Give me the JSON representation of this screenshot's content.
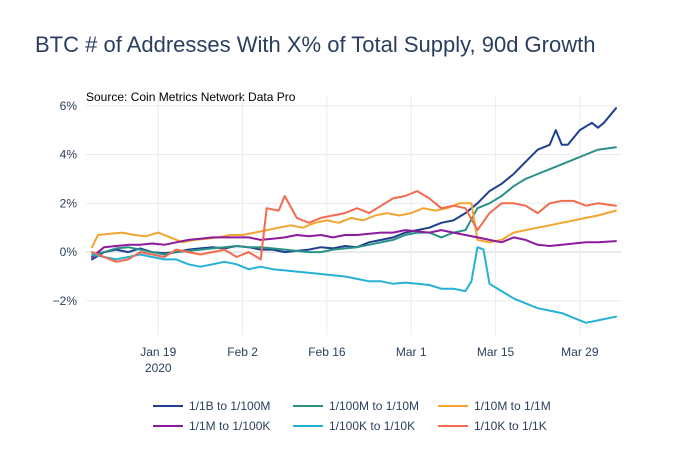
{
  "chart_data": {
    "type": "line",
    "title": "BTC # of Addresses With X% of Total Supply, 90d Growth",
    "subtitle": "Source: Coin Metrics Network Data Pro",
    "xlabel": "",
    "ylabel": "",
    "x_range": [
      "2020-01-07",
      "2020-04-05"
    ],
    "ylim": [
      -3.4,
      6.4
    ],
    "y_ticks": [
      -2,
      0,
      2,
      4,
      6
    ],
    "y_tick_labels": [
      "−2%",
      "0%",
      "2%",
      "4%",
      "6%"
    ],
    "x_ticks": [
      "2020-01-19",
      "2020-02-02",
      "2020-02-16",
      "2020-03-01",
      "2020-03-15",
      "2020-03-29"
    ],
    "x_tick_labels": [
      [
        "Jan 19",
        "2020"
      ],
      [
        "Feb 2",
        ""
      ],
      [
        "Feb 16",
        ""
      ],
      [
        "Mar 1",
        ""
      ],
      [
        "Mar 15",
        ""
      ],
      [
        "Mar 29",
        ""
      ]
    ],
    "grid": true,
    "legend_position": "bottom",
    "series": [
      {
        "name": "1/1B to 1/100M",
        "color": "#1f3f8f",
        "points": [
          [
            "2020-01-08",
            -0.3
          ],
          [
            "2020-01-10",
            0.0
          ],
          [
            "2020-01-12",
            0.1
          ],
          [
            "2020-01-14",
            0.0
          ],
          [
            "2020-01-16",
            0.15
          ],
          [
            "2020-01-18",
            0.0
          ],
          [
            "2020-01-20",
            -0.05
          ],
          [
            "2020-01-22",
            0.0
          ],
          [
            "2020-01-24",
            0.1
          ],
          [
            "2020-01-26",
            0.15
          ],
          [
            "2020-01-28",
            0.2
          ],
          [
            "2020-01-30",
            0.15
          ],
          [
            "2020-02-01",
            0.25
          ],
          [
            "2020-02-03",
            0.2
          ],
          [
            "2020-02-05",
            0.1
          ],
          [
            "2020-02-07",
            0.1
          ],
          [
            "2020-02-09",
            0.0
          ],
          [
            "2020-02-11",
            0.05
          ],
          [
            "2020-02-13",
            0.1
          ],
          [
            "2020-02-15",
            0.2
          ],
          [
            "2020-02-17",
            0.15
          ],
          [
            "2020-02-19",
            0.25
          ],
          [
            "2020-02-21",
            0.2
          ],
          [
            "2020-02-23",
            0.4
          ],
          [
            "2020-02-25",
            0.5
          ],
          [
            "2020-02-27",
            0.6
          ],
          [
            "2020-02-29",
            0.8
          ],
          [
            "2020-03-02",
            0.9
          ],
          [
            "2020-03-04",
            1.0
          ],
          [
            "2020-03-06",
            1.2
          ],
          [
            "2020-03-08",
            1.3
          ],
          [
            "2020-03-10",
            1.6
          ],
          [
            "2020-03-12",
            2.0
          ],
          [
            "2020-03-14",
            2.5
          ],
          [
            "2020-03-16",
            2.8
          ],
          [
            "2020-03-18",
            3.2
          ],
          [
            "2020-03-20",
            3.7
          ],
          [
            "2020-03-22",
            4.2
          ],
          [
            "2020-03-24",
            4.4
          ],
          [
            "2020-03-25",
            5.0
          ],
          [
            "2020-03-26",
            4.4
          ],
          [
            "2020-03-27",
            4.4
          ],
          [
            "2020-03-29",
            5.0
          ],
          [
            "2020-03-31",
            5.3
          ],
          [
            "2020-04-01",
            5.1
          ],
          [
            "2020-04-02",
            5.3
          ],
          [
            "2020-04-04",
            5.9
          ]
        ]
      },
      {
        "name": "1/100M to 1/10M",
        "color": "#2a9187",
        "points": [
          [
            "2020-01-08",
            -0.1
          ],
          [
            "2020-01-10",
            0.0
          ],
          [
            "2020-01-12",
            0.15
          ],
          [
            "2020-01-14",
            0.2
          ],
          [
            "2020-01-16",
            0.1
          ],
          [
            "2020-01-18",
            0.0
          ],
          [
            "2020-01-20",
            -0.1
          ],
          [
            "2020-01-22",
            0.0
          ],
          [
            "2020-01-24",
            0.05
          ],
          [
            "2020-01-26",
            0.1
          ],
          [
            "2020-01-28",
            0.15
          ],
          [
            "2020-01-30",
            0.2
          ],
          [
            "2020-02-01",
            0.25
          ],
          [
            "2020-02-03",
            0.2
          ],
          [
            "2020-02-05",
            0.2
          ],
          [
            "2020-02-07",
            0.15
          ],
          [
            "2020-02-09",
            0.1
          ],
          [
            "2020-02-11",
            0.05
          ],
          [
            "2020-02-13",
            0.0
          ],
          [
            "2020-02-15",
            0.0
          ],
          [
            "2020-02-17",
            0.1
          ],
          [
            "2020-02-19",
            0.15
          ],
          [
            "2020-02-21",
            0.2
          ],
          [
            "2020-02-23",
            0.3
          ],
          [
            "2020-02-25",
            0.4
          ],
          [
            "2020-02-27",
            0.5
          ],
          [
            "2020-02-29",
            0.7
          ],
          [
            "2020-03-02",
            0.8
          ],
          [
            "2020-03-04",
            0.8
          ],
          [
            "2020-03-06",
            0.6
          ],
          [
            "2020-03-08",
            0.8
          ],
          [
            "2020-03-10",
            0.9
          ],
          [
            "2020-03-12",
            1.8
          ],
          [
            "2020-03-14",
            2.0
          ],
          [
            "2020-03-16",
            2.3
          ],
          [
            "2020-03-18",
            2.7
          ],
          [
            "2020-03-20",
            3.0
          ],
          [
            "2020-03-22",
            3.2
          ],
          [
            "2020-03-24",
            3.4
          ],
          [
            "2020-03-26",
            3.6
          ],
          [
            "2020-03-28",
            3.8
          ],
          [
            "2020-03-30",
            4.0
          ],
          [
            "2020-04-01",
            4.2
          ],
          [
            "2020-04-04",
            4.3
          ]
        ]
      },
      {
        "name": "1/10M to 1/1M",
        "color": "#f2a531",
        "points": [
          [
            "2020-01-08",
            0.2
          ],
          [
            "2020-01-09",
            0.7
          ],
          [
            "2020-01-11",
            0.75
          ],
          [
            "2020-01-13",
            0.8
          ],
          [
            "2020-01-15",
            0.7
          ],
          [
            "2020-01-17",
            0.65
          ],
          [
            "2020-01-19",
            0.8
          ],
          [
            "2020-01-21",
            0.6
          ],
          [
            "2020-01-23",
            0.4
          ],
          [
            "2020-01-25",
            0.5
          ],
          [
            "2020-01-27",
            0.55
          ],
          [
            "2020-01-29",
            0.6
          ],
          [
            "2020-01-31",
            0.7
          ],
          [
            "2020-02-02",
            0.7
          ],
          [
            "2020-02-04",
            0.8
          ],
          [
            "2020-02-06",
            0.9
          ],
          [
            "2020-02-08",
            1.0
          ],
          [
            "2020-02-10",
            1.1
          ],
          [
            "2020-02-12",
            1.0
          ],
          [
            "2020-02-14",
            1.2
          ],
          [
            "2020-02-16",
            1.3
          ],
          [
            "2020-02-18",
            1.2
          ],
          [
            "2020-02-20",
            1.4
          ],
          [
            "2020-02-22",
            1.3
          ],
          [
            "2020-02-24",
            1.5
          ],
          [
            "2020-02-26",
            1.6
          ],
          [
            "2020-02-28",
            1.5
          ],
          [
            "2020-03-01",
            1.6
          ],
          [
            "2020-03-03",
            1.8
          ],
          [
            "2020-03-05",
            1.7
          ],
          [
            "2020-03-07",
            1.8
          ],
          [
            "2020-03-09",
            2.0
          ],
          [
            "2020-03-11",
            2.0
          ],
          [
            "2020-03-12",
            0.5
          ],
          [
            "2020-03-14",
            0.4
          ],
          [
            "2020-03-16",
            0.5
          ],
          [
            "2020-03-18",
            0.8
          ],
          [
            "2020-03-20",
            0.9
          ],
          [
            "2020-03-22",
            1.0
          ],
          [
            "2020-03-24",
            1.1
          ],
          [
            "2020-03-26",
            1.2
          ],
          [
            "2020-03-28",
            1.3
          ],
          [
            "2020-03-30",
            1.4
          ],
          [
            "2020-04-01",
            1.5
          ],
          [
            "2020-04-04",
            1.7
          ]
        ]
      },
      {
        "name": "1/1M to 1/100K",
        "color": "#8e1a9e",
        "points": [
          [
            "2020-01-08",
            -0.2
          ],
          [
            "2020-01-10",
            0.2
          ],
          [
            "2020-01-12",
            0.25
          ],
          [
            "2020-01-14",
            0.3
          ],
          [
            "2020-01-16",
            0.3
          ],
          [
            "2020-01-18",
            0.35
          ],
          [
            "2020-01-20",
            0.3
          ],
          [
            "2020-01-22",
            0.4
          ],
          [
            "2020-01-24",
            0.5
          ],
          [
            "2020-01-26",
            0.55
          ],
          [
            "2020-01-28",
            0.6
          ],
          [
            "2020-01-30",
            0.6
          ],
          [
            "2020-02-01",
            0.6
          ],
          [
            "2020-02-03",
            0.6
          ],
          [
            "2020-02-05",
            0.5
          ],
          [
            "2020-02-07",
            0.55
          ],
          [
            "2020-02-09",
            0.6
          ],
          [
            "2020-02-11",
            0.7
          ],
          [
            "2020-02-13",
            0.65
          ],
          [
            "2020-02-15",
            0.7
          ],
          [
            "2020-02-17",
            0.6
          ],
          [
            "2020-02-19",
            0.7
          ],
          [
            "2020-02-21",
            0.7
          ],
          [
            "2020-02-23",
            0.75
          ],
          [
            "2020-02-25",
            0.8
          ],
          [
            "2020-02-27",
            0.8
          ],
          [
            "2020-02-29",
            0.9
          ],
          [
            "2020-03-02",
            0.85
          ],
          [
            "2020-03-04",
            0.8
          ],
          [
            "2020-03-06",
            0.9
          ],
          [
            "2020-03-08",
            0.8
          ],
          [
            "2020-03-10",
            0.7
          ],
          [
            "2020-03-12",
            0.6
          ],
          [
            "2020-03-14",
            0.5
          ],
          [
            "2020-03-16",
            0.4
          ],
          [
            "2020-03-18",
            0.6
          ],
          [
            "2020-03-20",
            0.5
          ],
          [
            "2020-03-22",
            0.3
          ],
          [
            "2020-03-24",
            0.25
          ],
          [
            "2020-03-26",
            0.3
          ],
          [
            "2020-03-28",
            0.35
          ],
          [
            "2020-03-30",
            0.4
          ],
          [
            "2020-04-01",
            0.4
          ],
          [
            "2020-04-04",
            0.45
          ]
        ]
      },
      {
        "name": "1/100K to 1/10K",
        "color": "#25b1d6",
        "points": [
          [
            "2020-01-08",
            -0.1
          ],
          [
            "2020-01-10",
            -0.2
          ],
          [
            "2020-01-12",
            -0.3
          ],
          [
            "2020-01-14",
            -0.2
          ],
          [
            "2020-01-16",
            -0.1
          ],
          [
            "2020-01-18",
            -0.2
          ],
          [
            "2020-01-20",
            -0.3
          ],
          [
            "2020-01-22",
            -0.3
          ],
          [
            "2020-01-24",
            -0.5
          ],
          [
            "2020-01-26",
            -0.6
          ],
          [
            "2020-01-28",
            -0.5
          ],
          [
            "2020-01-30",
            -0.4
          ],
          [
            "2020-02-01",
            -0.5
          ],
          [
            "2020-02-03",
            -0.7
          ],
          [
            "2020-02-05",
            -0.6
          ],
          [
            "2020-02-07",
            -0.7
          ],
          [
            "2020-02-09",
            -0.75
          ],
          [
            "2020-02-11",
            -0.8
          ],
          [
            "2020-02-13",
            -0.85
          ],
          [
            "2020-02-15",
            -0.9
          ],
          [
            "2020-02-17",
            -0.95
          ],
          [
            "2020-02-19",
            -1.0
          ],
          [
            "2020-02-21",
            -1.1
          ],
          [
            "2020-02-23",
            -1.2
          ],
          [
            "2020-02-25",
            -1.2
          ],
          [
            "2020-02-27",
            -1.3
          ],
          [
            "2020-02-29",
            -1.25
          ],
          [
            "2020-03-02",
            -1.3
          ],
          [
            "2020-03-04",
            -1.35
          ],
          [
            "2020-03-06",
            -1.5
          ],
          [
            "2020-03-08",
            -1.5
          ],
          [
            "2020-03-10",
            -1.6
          ],
          [
            "2020-03-11",
            -1.2
          ],
          [
            "2020-03-12",
            0.2
          ],
          [
            "2020-03-13",
            0.1
          ],
          [
            "2020-03-14",
            -1.3
          ],
          [
            "2020-03-16",
            -1.6
          ],
          [
            "2020-03-18",
            -1.9
          ],
          [
            "2020-03-20",
            -2.1
          ],
          [
            "2020-03-22",
            -2.3
          ],
          [
            "2020-03-24",
            -2.4
          ],
          [
            "2020-03-26",
            -2.5
          ],
          [
            "2020-03-28",
            -2.7
          ],
          [
            "2020-03-30",
            -2.9
          ],
          [
            "2020-04-01",
            -2.8
          ],
          [
            "2020-04-04",
            -2.65
          ]
        ]
      },
      {
        "name": "1/10K to 1/1K",
        "color": "#f26b4f",
        "points": [
          [
            "2020-01-08",
            0.0
          ],
          [
            "2020-01-10",
            -0.2
          ],
          [
            "2020-01-12",
            -0.4
          ],
          [
            "2020-01-14",
            -0.3
          ],
          [
            "2020-01-16",
            0.0
          ],
          [
            "2020-01-18",
            -0.1
          ],
          [
            "2020-01-20",
            -0.2
          ],
          [
            "2020-01-22",
            0.1
          ],
          [
            "2020-01-24",
            0.0
          ],
          [
            "2020-01-26",
            -0.1
          ],
          [
            "2020-01-28",
            0.0
          ],
          [
            "2020-01-30",
            0.1
          ],
          [
            "2020-02-01",
            -0.2
          ],
          [
            "2020-02-03",
            0.0
          ],
          [
            "2020-02-05",
            -0.3
          ],
          [
            "2020-02-06",
            1.8
          ],
          [
            "2020-02-08",
            1.7
          ],
          [
            "2020-02-09",
            2.3
          ],
          [
            "2020-02-11",
            1.4
          ],
          [
            "2020-02-13",
            1.2
          ],
          [
            "2020-02-15",
            1.4
          ],
          [
            "2020-02-17",
            1.5
          ],
          [
            "2020-02-19",
            1.6
          ],
          [
            "2020-02-21",
            1.8
          ],
          [
            "2020-02-23",
            1.6
          ],
          [
            "2020-02-25",
            1.9
          ],
          [
            "2020-02-27",
            2.2
          ],
          [
            "2020-02-29",
            2.3
          ],
          [
            "2020-03-02",
            2.5
          ],
          [
            "2020-03-04",
            2.2
          ],
          [
            "2020-03-06",
            1.8
          ],
          [
            "2020-03-08",
            1.9
          ],
          [
            "2020-03-10",
            1.8
          ],
          [
            "2020-03-12",
            0.9
          ],
          [
            "2020-03-14",
            1.6
          ],
          [
            "2020-03-16",
            2.0
          ],
          [
            "2020-03-18",
            2.0
          ],
          [
            "2020-03-20",
            1.9
          ],
          [
            "2020-03-22",
            1.6
          ],
          [
            "2020-03-24",
            2.0
          ],
          [
            "2020-03-26",
            2.1
          ],
          [
            "2020-03-28",
            2.1
          ],
          [
            "2020-03-30",
            1.9
          ],
          [
            "2020-04-01",
            2.0
          ],
          [
            "2020-04-04",
            1.9
          ]
        ]
      }
    ]
  }
}
